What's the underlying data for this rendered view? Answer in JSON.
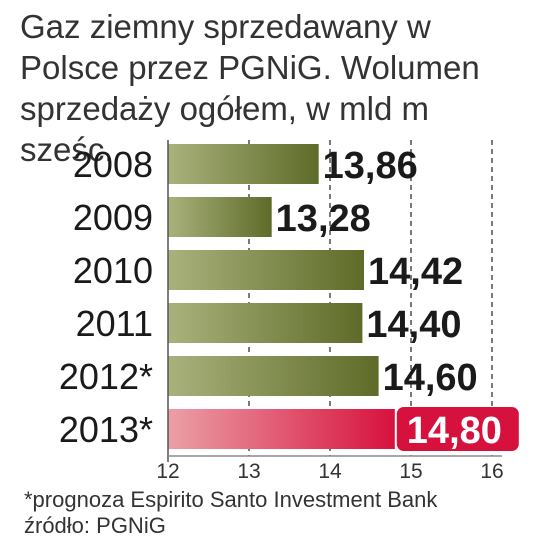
{
  "title": "Gaz ziemny sprzedawany w Polsce przez PGNiG. Wolumen sprzedaży ogółem, w mld m sześc.",
  "footnote": "*prognoza Espirito Santo Investment Bank",
  "source": "źródło: PGNiG",
  "colors": {
    "bar_dark": "#5e6b28",
    "bar_light": "#a9b27c",
    "highlight_dark": "#d7113e",
    "highlight_light": "#eba0a6",
    "highlight_label_bg": "#d7113e",
    "grid": "#333333",
    "axis": "#8a8a8a"
  },
  "chart_data": {
    "type": "bar",
    "orientation": "horizontal",
    "categories": [
      "2008",
      "2009",
      "2010",
      "2011",
      "2012*",
      "2013*"
    ],
    "values": [
      13.86,
      13.28,
      14.42,
      14.4,
      14.6,
      14.8
    ],
    "value_labels": [
      "13,86",
      "13,28",
      "14,42",
      "14,40",
      "14,60",
      "14,80"
    ],
    "highlighted": [
      false,
      false,
      false,
      false,
      false,
      true
    ],
    "xlim": [
      12,
      16
    ],
    "xticks": [
      12,
      13,
      14,
      15,
      16
    ],
    "grid": "vertical dashed"
  }
}
